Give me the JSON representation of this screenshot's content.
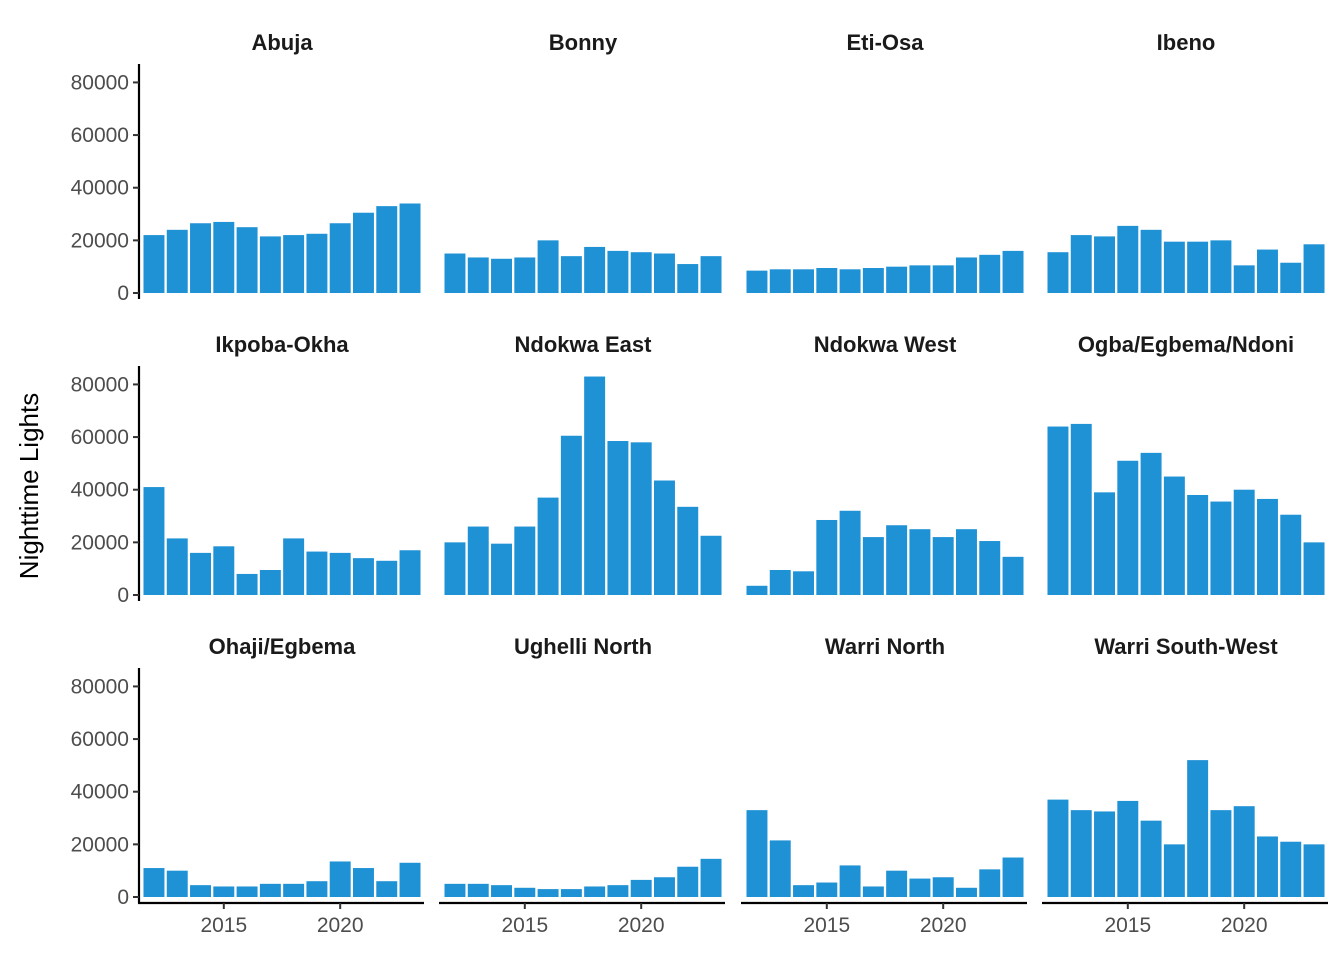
{
  "chart_data": {
    "type": "bar",
    "layout": "facet-grid-3x4",
    "ylabel": "Nighttime Lights",
    "xlabel": "",
    "ylim": [
      0,
      87000
    ],
    "y_ticks": [
      0,
      20000,
      40000,
      60000,
      80000
    ],
    "x_ticks": [
      2015,
      2020
    ],
    "years": [
      2012,
      2013,
      2014,
      2015,
      2016,
      2017,
      2018,
      2019,
      2020,
      2021,
      2022,
      2023
    ],
    "bar_color": "#1f91d5",
    "panels": [
      {
        "name": "Abuja",
        "values": [
          22000,
          24000,
          26500,
          27000,
          25000,
          21500,
          22000,
          22500,
          26500,
          30500,
          33000,
          34000
        ]
      },
      {
        "name": "Bonny",
        "values": [
          15000,
          13500,
          13000,
          13500,
          20000,
          14000,
          17500,
          16000,
          15500,
          15000,
          11000,
          14000
        ]
      },
      {
        "name": "Eti-Osa",
        "values": [
          8500,
          9000,
          9000,
          9500,
          9000,
          9500,
          10000,
          10500,
          10500,
          13500,
          14500,
          16000
        ]
      },
      {
        "name": "Ibeno",
        "values": [
          15500,
          22000,
          21500,
          25500,
          24000,
          19500,
          19500,
          20000,
          10500,
          16500,
          11500,
          18500
        ]
      },
      {
        "name": "Ikpoba-Okha",
        "values": [
          41000,
          21500,
          16000,
          18500,
          8000,
          9500,
          21500,
          16500,
          16000,
          14000,
          13000,
          17000
        ]
      },
      {
        "name": "Ndokwa East",
        "values": [
          20000,
          26000,
          19500,
          26000,
          37000,
          60500,
          83000,
          58500,
          58000,
          43500,
          33500,
          22500
        ]
      },
      {
        "name": "Ndokwa West",
        "values": [
          3500,
          9500,
          9000,
          28500,
          32000,
          22000,
          26500,
          25000,
          22000,
          25000,
          20500,
          14500
        ]
      },
      {
        "name": "Ogba/Egbema/Ndoni",
        "values": [
          64000,
          65000,
          39000,
          51000,
          54000,
          45000,
          38000,
          35500,
          40000,
          36500,
          30500,
          20000
        ]
      },
      {
        "name": "Ohaji/Egbema",
        "values": [
          11000,
          10000,
          4500,
          4000,
          4000,
          5000,
          5000,
          6000,
          13500,
          11000,
          6000,
          13000
        ]
      },
      {
        "name": "Ughelli North",
        "values": [
          5000,
          5000,
          4500,
          3500,
          3000,
          3000,
          4000,
          4500,
          6500,
          7500,
          11500,
          14500
        ]
      },
      {
        "name": "Warri North",
        "values": [
          33000,
          21500,
          4500,
          5500,
          12000,
          4000,
          10000,
          7000,
          7500,
          3500,
          10500,
          15000
        ]
      },
      {
        "name": "Warri South-West",
        "values": [
          37000,
          33000,
          32500,
          36500,
          29000,
          20000,
          52000,
          33000,
          34500,
          23000,
          21000,
          20000
        ]
      }
    ]
  }
}
